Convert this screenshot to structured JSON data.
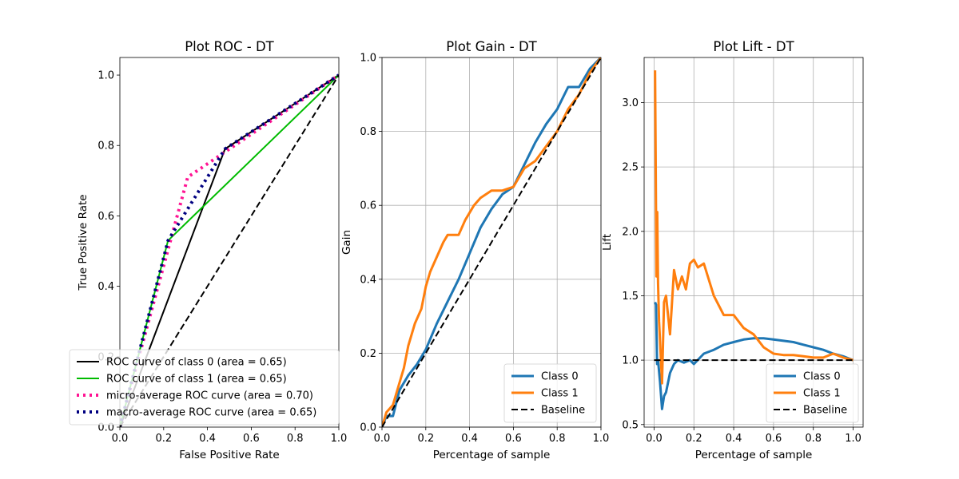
{
  "chart_data": [
    {
      "type": "line",
      "title": "Plot ROC - DT",
      "xlabel": "False Positive Rate",
      "ylabel": "True Positive Rate",
      "xlim": [
        0,
        1
      ],
      "ylim": [
        0,
        1.05
      ],
      "xticks": [
        "0.0",
        "0.2",
        "0.4",
        "0.6",
        "0.8",
        "1.0"
      ],
      "yticks": [
        "0.0",
        "0.2",
        "0.4",
        "0.6",
        "0.8",
        "1.0"
      ],
      "grid": false,
      "legend_position": "lower-left",
      "series": [
        {
          "name": "ROC curve of class 0 (area = 0.65)",
          "color": "#000000",
          "style": "solid",
          "x": [
            0,
            0.48,
            1
          ],
          "y": [
            0,
            0.79,
            1
          ]
        },
        {
          "name": "ROC curve of class 1 (area = 0.65)",
          "color": "#00bb00",
          "style": "solid",
          "x": [
            0,
            0.22,
            1
          ],
          "y": [
            0,
            0.53,
            1
          ]
        },
        {
          "name": "micro-average ROC curve (area = 0.70)",
          "color": "#ff1493",
          "style": "dotted",
          "x": [
            0,
            0.31,
            1
          ],
          "y": [
            0,
            0.71,
            1
          ]
        },
        {
          "name": "macro-average ROC curve (area = 0.65)",
          "color": "#000080",
          "style": "dotted",
          "x": [
            0,
            0.22,
            0.48,
            1
          ],
          "y": [
            0,
            0.53,
            0.79,
            1
          ]
        },
        {
          "name": "",
          "color": "#000000",
          "style": "dashed",
          "x": [
            0,
            1
          ],
          "y": [
            0,
            1
          ]
        }
      ]
    },
    {
      "type": "line",
      "title": "Plot Gain - DT",
      "xlabel": "Percentage of sample",
      "ylabel": "Gain",
      "xlim": [
        0,
        1
      ],
      "ylim": [
        0,
        1
      ],
      "xticks": [
        "0.0",
        "0.2",
        "0.4",
        "0.6",
        "0.8",
        "1.0"
      ],
      "yticks": [
        "0.0",
        "0.2",
        "0.4",
        "0.6",
        "0.8",
        "1.0"
      ],
      "grid": true,
      "legend_position": "lower-right",
      "series": [
        {
          "name": "Class 0",
          "color": "#1f77b4",
          "style": "solid",
          "x": [
            0,
            0.02,
            0.05,
            0.08,
            0.12,
            0.16,
            0.2,
            0.25,
            0.3,
            0.35,
            0.4,
            0.45,
            0.5,
            0.55,
            0.6,
            0.65,
            0.7,
            0.75,
            0.8,
            0.85,
            0.9,
            0.95,
            1
          ],
          "y": [
            0,
            0.03,
            0.03,
            0.1,
            0.14,
            0.17,
            0.21,
            0.28,
            0.34,
            0.4,
            0.47,
            0.54,
            0.59,
            0.63,
            0.65,
            0.71,
            0.77,
            0.82,
            0.86,
            0.92,
            0.92,
            0.97,
            1
          ]
        },
        {
          "name": "Class 1",
          "color": "#ff7f0e",
          "style": "solid",
          "x": [
            0,
            0.02,
            0.05,
            0.08,
            0.1,
            0.12,
            0.15,
            0.18,
            0.2,
            0.22,
            0.25,
            0.28,
            0.3,
            0.35,
            0.38,
            0.42,
            0.45,
            0.5,
            0.55,
            0.6,
            0.65,
            0.7,
            0.75,
            0.8,
            0.85,
            0.9,
            0.95,
            1
          ],
          "y": [
            0,
            0.04,
            0.06,
            0.12,
            0.16,
            0.22,
            0.28,
            0.32,
            0.38,
            0.42,
            0.46,
            0.5,
            0.52,
            0.52,
            0.56,
            0.6,
            0.62,
            0.64,
            0.64,
            0.65,
            0.7,
            0.72,
            0.76,
            0.8,
            0.86,
            0.9,
            0.96,
            1
          ]
        },
        {
          "name": "Baseline",
          "color": "#000000",
          "style": "dashed",
          "x": [
            0,
            1
          ],
          "y": [
            0,
            1
          ]
        }
      ]
    },
    {
      "type": "line",
      "title": "Plot Lift - DT",
      "xlabel": "Percentage of sample",
      "ylabel": "Lift",
      "xlim": [
        -0.05,
        1.05
      ],
      "ylim": [
        0.48,
        3.35
      ],
      "xticks": [
        "0.0",
        "0.2",
        "0.4",
        "0.6",
        "0.8",
        "1.0"
      ],
      "yticks": [
        "0.5",
        "1.0",
        "1.5",
        "2.0",
        "2.5",
        "3.0"
      ],
      "grid": true,
      "legend_position": "lower-right",
      "series": [
        {
          "name": "Class 0",
          "color": "#1f77b4",
          "style": "solid",
          "x": [
            0.005,
            0.01,
            0.015,
            0.02,
            0.03,
            0.04,
            0.05,
            0.06,
            0.08,
            0.1,
            0.12,
            0.15,
            0.18,
            0.2,
            0.25,
            0.3,
            0.35,
            0.4,
            0.45,
            0.5,
            0.55,
            0.6,
            0.65,
            0.7,
            0.75,
            0.8,
            0.85,
            0.9,
            0.95,
            1
          ],
          "y": [
            1.45,
            1.43,
            0.97,
            1.0,
            0.83,
            0.62,
            0.72,
            0.75,
            0.9,
            0.97,
            1.0,
            0.98,
            1.0,
            0.97,
            1.05,
            1.08,
            1.12,
            1.14,
            1.16,
            1.17,
            1.17,
            1.16,
            1.15,
            1.14,
            1.12,
            1.1,
            1.08,
            1.05,
            1.03,
            1.0
          ]
        },
        {
          "name": "Class 1",
          "color": "#ff7f0e",
          "style": "solid",
          "x": [
            0.005,
            0.008,
            0.012,
            0.016,
            0.02,
            0.025,
            0.03,
            0.04,
            0.05,
            0.06,
            0.08,
            0.1,
            0.12,
            0.14,
            0.16,
            0.18,
            0.2,
            0.22,
            0.25,
            0.28,
            0.3,
            0.35,
            0.4,
            0.45,
            0.5,
            0.55,
            0.6,
            0.65,
            0.7,
            0.75,
            0.8,
            0.85,
            0.9,
            0.95,
            1
          ],
          "y": [
            3.25,
            2.6,
            1.65,
            2.15,
            1.6,
            1.3,
            1.15,
            0.82,
            1.45,
            1.5,
            1.2,
            1.7,
            1.55,
            1.65,
            1.55,
            1.75,
            1.78,
            1.72,
            1.75,
            1.6,
            1.5,
            1.35,
            1.35,
            1.25,
            1.2,
            1.1,
            1.05,
            1.04,
            1.04,
            1.03,
            1.02,
            1.02,
            1.05,
            1.02,
            1.0
          ]
        },
        {
          "name": "Baseline",
          "color": "#000000",
          "style": "dashed",
          "x": [
            0,
            1
          ],
          "y": [
            1,
            1
          ]
        }
      ]
    }
  ]
}
